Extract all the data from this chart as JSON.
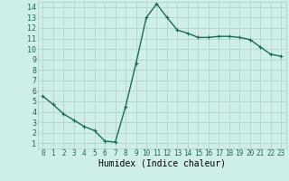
{
  "x": [
    0,
    1,
    2,
    3,
    4,
    5,
    6,
    7,
    8,
    9,
    10,
    11,
    12,
    13,
    14,
    15,
    16,
    17,
    18,
    19,
    20,
    21,
    22,
    23
  ],
  "y": [
    5.5,
    4.7,
    3.8,
    3.2,
    2.6,
    2.2,
    1.2,
    1.1,
    4.5,
    8.6,
    13.0,
    14.3,
    13.0,
    11.8,
    11.5,
    11.1,
    11.1,
    11.2,
    11.2,
    11.1,
    10.9,
    10.2,
    9.5,
    9.3
  ],
  "line_color": "#1a6b5a",
  "marker": "+",
  "markersize": 3,
  "linewidth": 1.0,
  "xlabel": "Humidex (Indice chaleur)",
  "xlabel_fontsize": 7,
  "background_color": "#ceeee8",
  "grid_color": "#b0ccc8",
  "tick_color": "#1a6b5a",
  "xlim": [
    -0.5,
    23.5
  ],
  "ylim": [
    0.5,
    14.5
  ],
  "yticks": [
    1,
    2,
    3,
    4,
    5,
    6,
    7,
    8,
    9,
    10,
    11,
    12,
    13,
    14
  ],
  "xticks": [
    0,
    1,
    2,
    3,
    4,
    5,
    6,
    7,
    8,
    9,
    10,
    11,
    12,
    13,
    14,
    15,
    16,
    17,
    18,
    19,
    20,
    21,
    22,
    23
  ],
  "ytick_fontsize": 6,
  "xtick_fontsize": 5.5
}
